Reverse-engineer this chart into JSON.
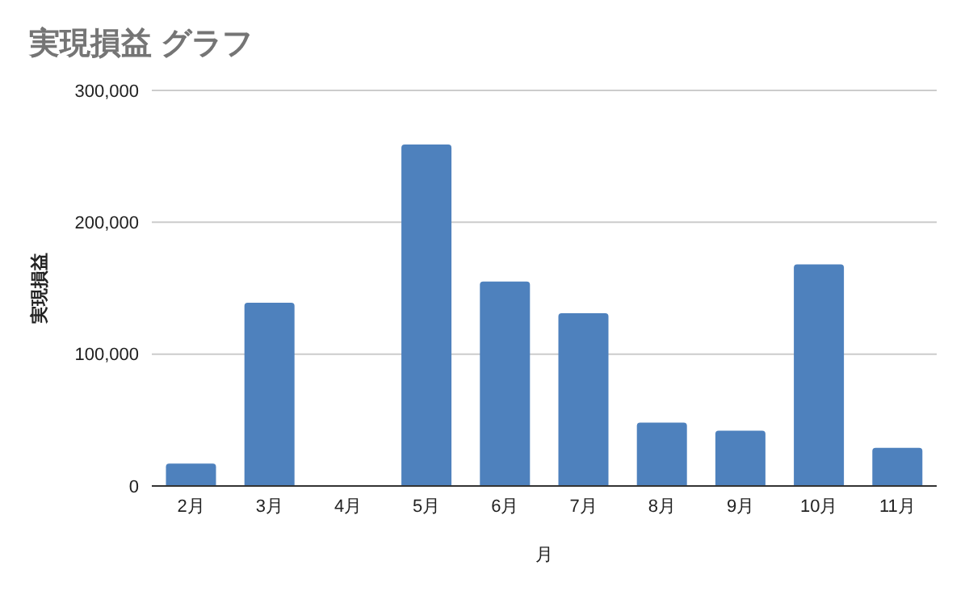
{
  "chart_data": {
    "type": "bar",
    "title": "実現損益 グラフ",
    "xlabel": "月",
    "ylabel": "実現損益",
    "categories": [
      "2月",
      "3月",
      "4月",
      "5月",
      "6月",
      "7月",
      "8月",
      "9月",
      "10月",
      "11月"
    ],
    "values": [
      17000,
      139000,
      0,
      259000,
      155000,
      131000,
      48000,
      42000,
      168000,
      29000
    ],
    "color": "#4e81bd",
    "ylim": [
      0,
      300000
    ],
    "yticks": [
      0,
      {
        "value": 100000,
        "label": "100,000"
      },
      {
        "value": 200000,
        "label": "200,000"
      },
      {
        "value": 300000,
        "label": "300,000"
      }
    ],
    "grid": "y"
  }
}
